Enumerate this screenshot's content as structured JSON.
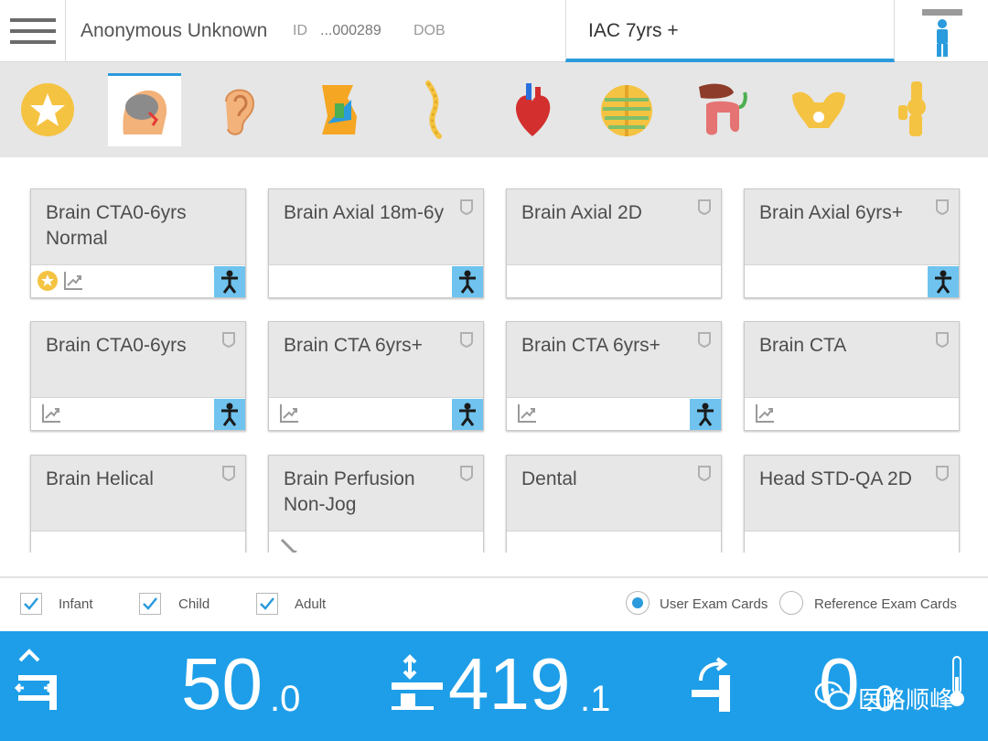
{
  "header": {
    "patient_name": "Anonymous Unknown",
    "id_label": "ID",
    "id_value": "...000289",
    "dob_label": "DOB",
    "protocol_tab": "IAC 7yrs +"
  },
  "anatomy": [
    "favorites",
    "head",
    "ear",
    "neck",
    "spine",
    "heart",
    "chest",
    "abdomen",
    "pelvis",
    "extremity"
  ],
  "cards": [
    {
      "title": "Brain CTA0-6yrs Normal"
    },
    {
      "title": "Brain Axial 18m-6y"
    },
    {
      "title": "Brain Axial 2D"
    },
    {
      "title": "Brain Axial 6yrs+"
    },
    {
      "title": "Brain CTA0-6yrs"
    },
    {
      "title": "Brain CTA 6yrs+"
    },
    {
      "title": "Brain CTA 6yrs+"
    },
    {
      "title": "Brain CTA"
    },
    {
      "title": "Brain Helical"
    },
    {
      "title": "Brain Perfusion Non-Jog"
    },
    {
      "title": "Dental"
    },
    {
      "title": "Head STD-QA 2D"
    }
  ],
  "filters": {
    "infant": "Infant",
    "child": "Child",
    "adult": "Adult",
    "user_cards": "User Exam Cards",
    "reference_cards": "Reference Exam Cards"
  },
  "status": {
    "height_int": "50",
    "height_dec": ".0",
    "table_int": "419",
    "table_dec": ".1",
    "tilt_int": "0",
    "tilt_dec": ".0"
  },
  "watermark": "医路顺峰",
  "colors": {
    "accent": "#2a9bdc",
    "status_bar": "#1e9ee8",
    "patient_position": "#6fc3ee"
  }
}
